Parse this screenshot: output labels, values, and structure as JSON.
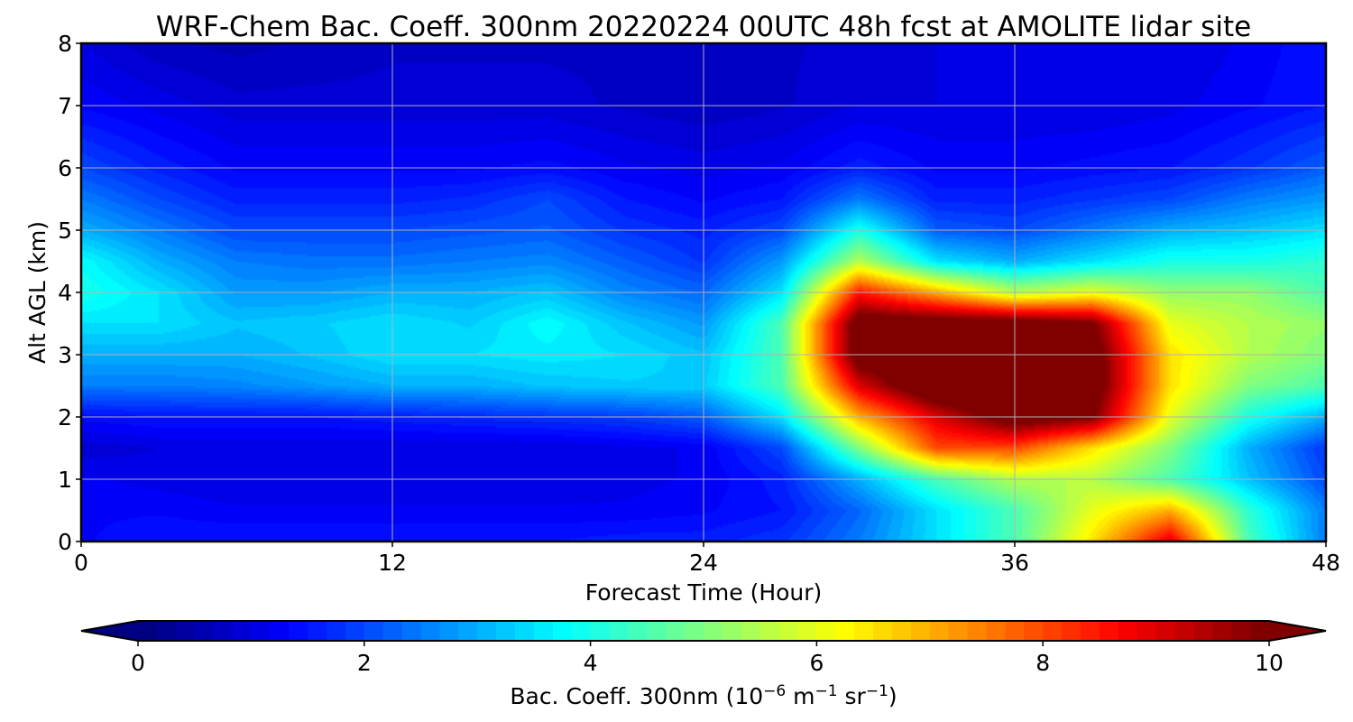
{
  "chart_data": {
    "type": "heatmap",
    "title": "WRF-Chem Bac. Coeff. 300nm  20220224 00UTC 48h fcst at AMOLITE lidar site",
    "xlabel": "Forecast Time (Hour)",
    "ylabel": "Alt AGL (km)",
    "xlim": [
      0,
      48
    ],
    "ylim": [
      0,
      8
    ],
    "xticks": [
      "0",
      "12",
      "24",
      "36",
      "48"
    ],
    "yticks": [
      "0",
      "1",
      "2",
      "3",
      "4",
      "5",
      "6",
      "7",
      "8"
    ],
    "grid": true,
    "colormap": "jet",
    "colorbar": {
      "label_prefix": "Bac. Coeff. 300nm  (10",
      "label_exp1": "−6",
      "label_mid": " m",
      "label_exp2": "−1",
      "label_mid2": " sr",
      "label_exp3": "−1",
      "label_suffix": ")",
      "ticks": [
        "0",
        "2",
        "4",
        "6",
        "8",
        "10"
      ],
      "range": [
        0,
        10
      ],
      "extend": "both",
      "orientation": "horizontal"
    },
    "x_hours": [
      0,
      3,
      6,
      9,
      12,
      15,
      18,
      21,
      24,
      27,
      30,
      33,
      36,
      39,
      42,
      45,
      48
    ],
    "y_km": [
      0,
      0.5,
      1,
      1.5,
      2,
      2.5,
      3,
      3.5,
      4,
      4.5,
      5,
      5.5,
      6,
      7,
      8
    ],
    "values": [
      [
        1.3,
        1.5,
        1.5,
        1.5,
        1.5,
        1.5,
        1.5,
        1.6,
        1.6,
        1.8,
        2.5,
        3.5,
        4.5,
        6.5,
        9.0,
        4.5,
        2.5
      ],
      [
        1.3,
        1.3,
        1.2,
        1.2,
        1.2,
        1.2,
        1.2,
        1.2,
        1.3,
        1.5,
        2.3,
        3.5,
        4.5,
        6.0,
        7.0,
        4.2,
        2.5
      ],
      [
        1.2,
        1.1,
        1.0,
        1.0,
        1.0,
        1.0,
        1.0,
        1.1,
        1.2,
        1.6,
        3.0,
        4.5,
        5.5,
        5.5,
        4.5,
        3.2,
        2.0
      ],
      [
        0.9,
        1.0,
        1.0,
        1.0,
        1.0,
        1.0,
        1.0,
        1.1,
        1.2,
        2.0,
        5.0,
        8.0,
        8.0,
        6.5,
        5.0,
        3.0,
        1.8
      ],
      [
        1.4,
        1.5,
        1.5,
        1.5,
        1.6,
        1.7,
        1.8,
        1.9,
        2.2,
        3.5,
        7.0,
        9.0,
        10.5,
        10.0,
        6.0,
        4.0,
        3.0
      ],
      [
        2.5,
        2.5,
        2.6,
        2.8,
        3.0,
        3.0,
        3.2,
        3.3,
        3.3,
        4.5,
        9.0,
        11.0,
        11.0,
        10.5,
        6.5,
        5.0,
        4.5
      ],
      [
        3.0,
        3.0,
        3.0,
        3.2,
        3.5,
        3.5,
        3.6,
        3.5,
        3.2,
        4.5,
        10.5,
        11.0,
        11.0,
        10.5,
        6.5,
        5.5,
        5.0
      ],
      [
        3.5,
        3.5,
        3.2,
        3.3,
        3.5,
        3.3,
        3.8,
        3.2,
        2.8,
        4.5,
        10.5,
        10.5,
        10.5,
        10.0,
        6.0,
        5.5,
        5.2
      ],
      [
        4.0,
        3.5,
        2.8,
        2.8,
        3.0,
        3.0,
        3.2,
        2.6,
        2.3,
        3.5,
        8.5,
        7.0,
        5.5,
        6.0,
        5.2,
        5.2,
        4.5
      ],
      [
        3.8,
        3.0,
        2.5,
        2.4,
        2.4,
        2.5,
        2.6,
        2.2,
        1.8,
        2.8,
        5.5,
        3.5,
        3.0,
        3.5,
        4.0,
        4.0,
        4.2
      ],
      [
        3.0,
        2.5,
        2.0,
        2.0,
        2.0,
        2.1,
        2.2,
        1.8,
        1.6,
        2.0,
        4.0,
        2.2,
        2.0,
        2.5,
        3.0,
        3.2,
        3.5
      ],
      [
        2.5,
        2.0,
        1.6,
        1.6,
        1.6,
        1.7,
        2.0,
        1.5,
        1.3,
        1.5,
        2.5,
        1.6,
        1.6,
        1.8,
        2.0,
        2.5,
        2.8
      ],
      [
        2.0,
        1.6,
        1.3,
        1.3,
        1.3,
        1.3,
        1.4,
        1.2,
        1.1,
        1.2,
        1.6,
        1.3,
        1.3,
        1.4,
        1.5,
        1.8,
        2.2
      ],
      [
        1.3,
        1.1,
        0.9,
        0.9,
        0.9,
        0.9,
        0.9,
        0.8,
        0.7,
        0.8,
        1.0,
        1.0,
        1.0,
        1.0,
        1.1,
        1.3,
        1.5
      ],
      [
        1.0,
        0.7,
        0.6,
        0.7,
        0.8,
        0.8,
        0.8,
        0.8,
        0.8,
        0.8,
        0.9,
        1.0,
        1.0,
        1.0,
        1.0,
        1.2,
        1.5
      ]
    ]
  }
}
